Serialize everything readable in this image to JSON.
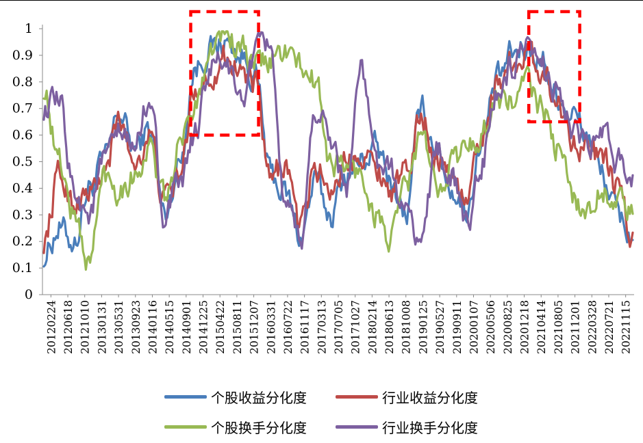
{
  "chart_data": {
    "type": "line",
    "title": "",
    "xlabel": "",
    "ylabel": "",
    "ylim": [
      0,
      1
    ],
    "y_ticks": [
      "0",
      "0.1",
      "0.2",
      "0.3",
      "0.4",
      "0.5",
      "0.6",
      "0.7",
      "0.8",
      "0.9",
      "1"
    ],
    "x_tick_labels": [
      "20120224",
      "20120618",
      "20121010",
      "20130131",
      "20130531",
      "20130923",
      "20140116",
      "20140515",
      "20140901",
      "20141225",
      "20150422",
      "20150811",
      "20151207",
      "20160331",
      "20160722",
      "20161117",
      "20170313",
      "20170705",
      "20171027",
      "20180214",
      "20180613",
      "20181008",
      "20190125",
      "20190527",
      "20190911",
      "20200107",
      "20200506",
      "20200825",
      "20201218",
      "20210414",
      "20210805",
      "20211201",
      "20220328",
      "20220721",
      "20221115"
    ],
    "grid": false,
    "legend_position": "bottom",
    "highlight_boxes": [
      {
        "x_from": "20141225",
        "x_to": "20151207",
        "y_from": 0.6,
        "y_to": 1.0,
        "color": "#ff0000",
        "style": "dashed"
      },
      {
        "x_from": "20210414",
        "x_to": "20211201",
        "y_from": 0.65,
        "y_to": 1.0,
        "color": "#ff0000",
        "style": "dashed"
      }
    ],
    "series": [
      {
        "name": "个股收益分化度",
        "color": "#4a7ebb",
        "values": [
          0.15,
          0.25,
          0.2,
          0.4,
          0.5,
          0.68,
          0.55,
          0.62,
          0.3,
          0.5,
          0.85,
          0.92,
          0.95,
          0.9,
          0.82,
          0.45,
          0.38,
          0.22,
          0.42,
          0.3,
          0.45,
          0.5,
          0.55,
          0.42,
          0.3,
          0.7,
          0.55,
          0.4,
          0.32,
          0.58,
          0.8,
          0.9,
          0.93,
          0.88,
          0.75,
          0.68,
          0.6,
          0.45,
          0.3,
          0.22
        ]
      },
      {
        "name": "行业收益分化度",
        "color": "#be4b48",
        "values": [
          0.2,
          0.45,
          0.35,
          0.38,
          0.45,
          0.65,
          0.5,
          0.6,
          0.35,
          0.45,
          0.78,
          0.82,
          0.9,
          0.85,
          0.78,
          0.42,
          0.5,
          0.25,
          0.48,
          0.4,
          0.5,
          0.55,
          0.48,
          0.4,
          0.45,
          0.68,
          0.52,
          0.45,
          0.35,
          0.6,
          0.8,
          0.88,
          0.9,
          0.85,
          0.72,
          0.6,
          0.55,
          0.5,
          0.4,
          0.2
        ]
      },
      {
        "name": "个股换手分化度",
        "color": "#98b954",
        "values": [
          0.78,
          0.5,
          0.3,
          0.12,
          0.45,
          0.4,
          0.45,
          0.55,
          0.35,
          0.55,
          0.72,
          0.93,
          0.98,
          0.92,
          0.86,
          0.88,
          0.92,
          0.85,
          0.8,
          0.5,
          0.48,
          0.45,
          0.3,
          0.2,
          0.42,
          0.6,
          0.4,
          0.5,
          0.55,
          0.6,
          0.75,
          0.72,
          0.8,
          0.7,
          0.55,
          0.38,
          0.3,
          0.4,
          0.35,
          0.3
        ]
      },
      {
        "name": "行业换手分化度",
        "color": "#7d60a0",
        "values": [
          0.7,
          0.72,
          0.4,
          0.3,
          0.5,
          0.6,
          0.55,
          0.75,
          0.3,
          0.4,
          0.6,
          0.85,
          0.88,
          0.72,
          0.9,
          0.95,
          0.3,
          0.2,
          0.7,
          0.6,
          0.4,
          0.85,
          0.5,
          0.45,
          0.3,
          0.2,
          0.55,
          0.45,
          0.25,
          0.5,
          0.75,
          0.85,
          0.9,
          0.85,
          0.78,
          0.62,
          0.55,
          0.6,
          0.5,
          0.45
        ]
      }
    ]
  }
}
